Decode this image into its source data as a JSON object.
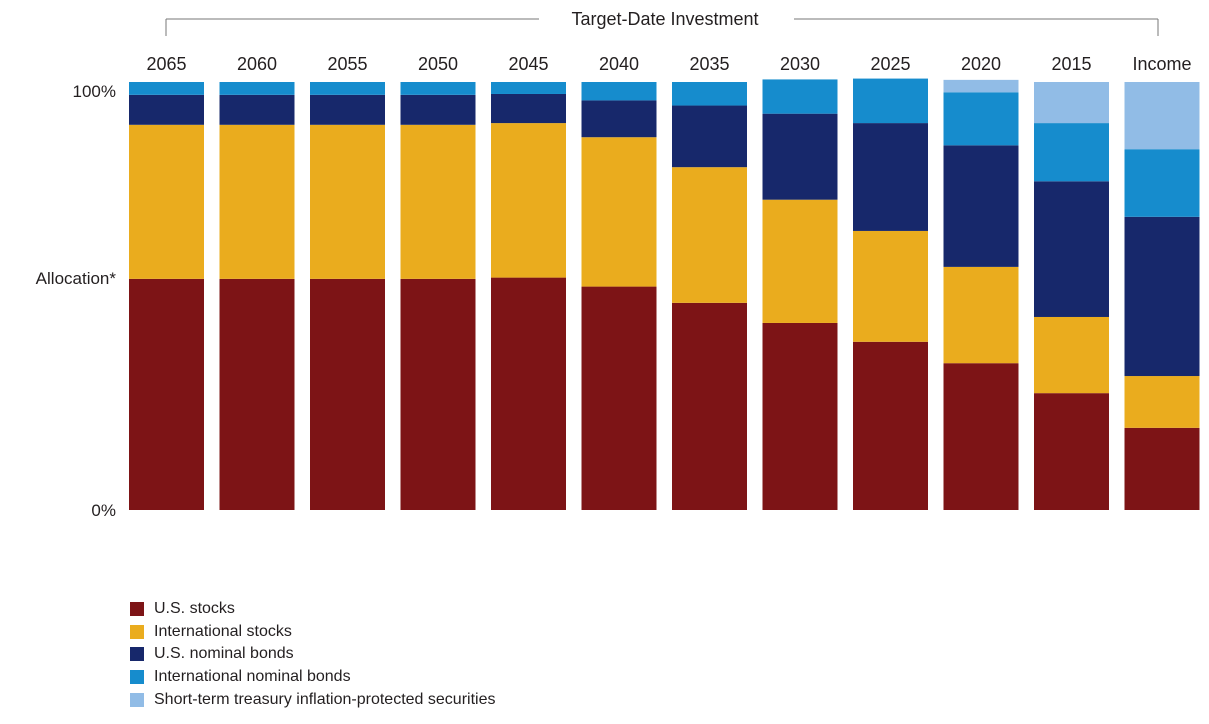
{
  "chart_data": {
    "type": "bar",
    "stacked": true,
    "title": "Target-Date Investment",
    "ylabel": "Allocation*",
    "ylim": [
      0,
      100
    ],
    "yticks": [
      "0%",
      "100%"
    ],
    "grid": false,
    "legend_position": "bottom-left",
    "categories": [
      "2065",
      "2060",
      "2055",
      "2050",
      "2045",
      "2040",
      "2035",
      "2030",
      "2025",
      "2020",
      "2015",
      "Income"
    ],
    "series": [
      {
        "name": "U.S. stocks",
        "color": "#7d1416",
        "values": [
          54,
          54,
          54,
          54,
          54.3,
          52.2,
          48.4,
          43.7,
          39.3,
          34.3,
          27.3,
          19.2
        ]
      },
      {
        "name": "International stocks",
        "color": "#eaac1e",
        "values": [
          36,
          36,
          36,
          36,
          36.1,
          34.9,
          31.7,
          28.8,
          25.9,
          22.5,
          17.8,
          12.1
        ]
      },
      {
        "name": "U.S. nominal bonds",
        "color": "#17286b",
        "values": [
          7,
          7,
          7,
          7,
          6.8,
          8.6,
          14.4,
          20.1,
          25.2,
          28.4,
          31.7,
          37.2
        ]
      },
      {
        "name": "International nominal bonds",
        "color": "#168ccd",
        "values": [
          3,
          3,
          3,
          3,
          2.8,
          4.3,
          5.5,
          8.0,
          10.4,
          12.4,
          13.6,
          15.8
        ]
      },
      {
        "name": "Short-term treasury inflation-protected securities",
        "color": "#91bce6",
        "values": [
          0,
          0,
          0,
          0,
          0,
          0,
          0,
          0,
          0,
          2.9,
          9.6,
          15.7
        ]
      }
    ]
  }
}
